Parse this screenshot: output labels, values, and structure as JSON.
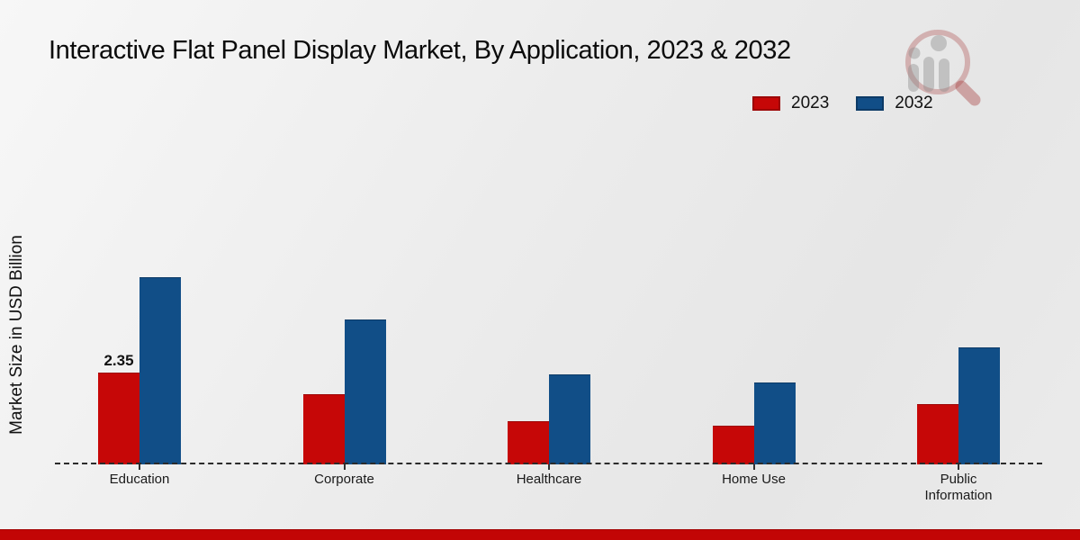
{
  "chart_data": {
    "type": "bar",
    "title": "Interactive Flat Panel Display Market, By Application, 2023 & 2032",
    "ylabel": "Market Size in USD Billion",
    "xlabel": "",
    "categories": [
      "Education",
      "Corporate",
      "Healthcare",
      "Home Use",
      "Public Information"
    ],
    "series": [
      {
        "name": "2023",
        "color": "#c60707",
        "edge_color": "#9c0404",
        "values": [
          2.35,
          1.8,
          1.1,
          1.0,
          1.55
        ]
      },
      {
        "name": "2032",
        "color": "#114e87",
        "edge_color": "#0c3a66",
        "values": [
          4.8,
          3.7,
          2.3,
          2.1,
          3.0
        ]
      }
    ],
    "annotations": [
      {
        "series_index": 0,
        "category_index": 0,
        "text": "2.35"
      }
    ],
    "ylim": [
      0,
      5.5
    ],
    "grid": false,
    "legend_position": "top-right",
    "baseline_style": "dashed",
    "background_color": "#ececec",
    "footer_bar_color": "#c20505"
  },
  "watermark": {
    "name": "magnifier-bar-chart-logo",
    "ring_color": "rgba(165,60,60,0.32)",
    "figure_color": "rgba(140,140,140,0.42)"
  }
}
